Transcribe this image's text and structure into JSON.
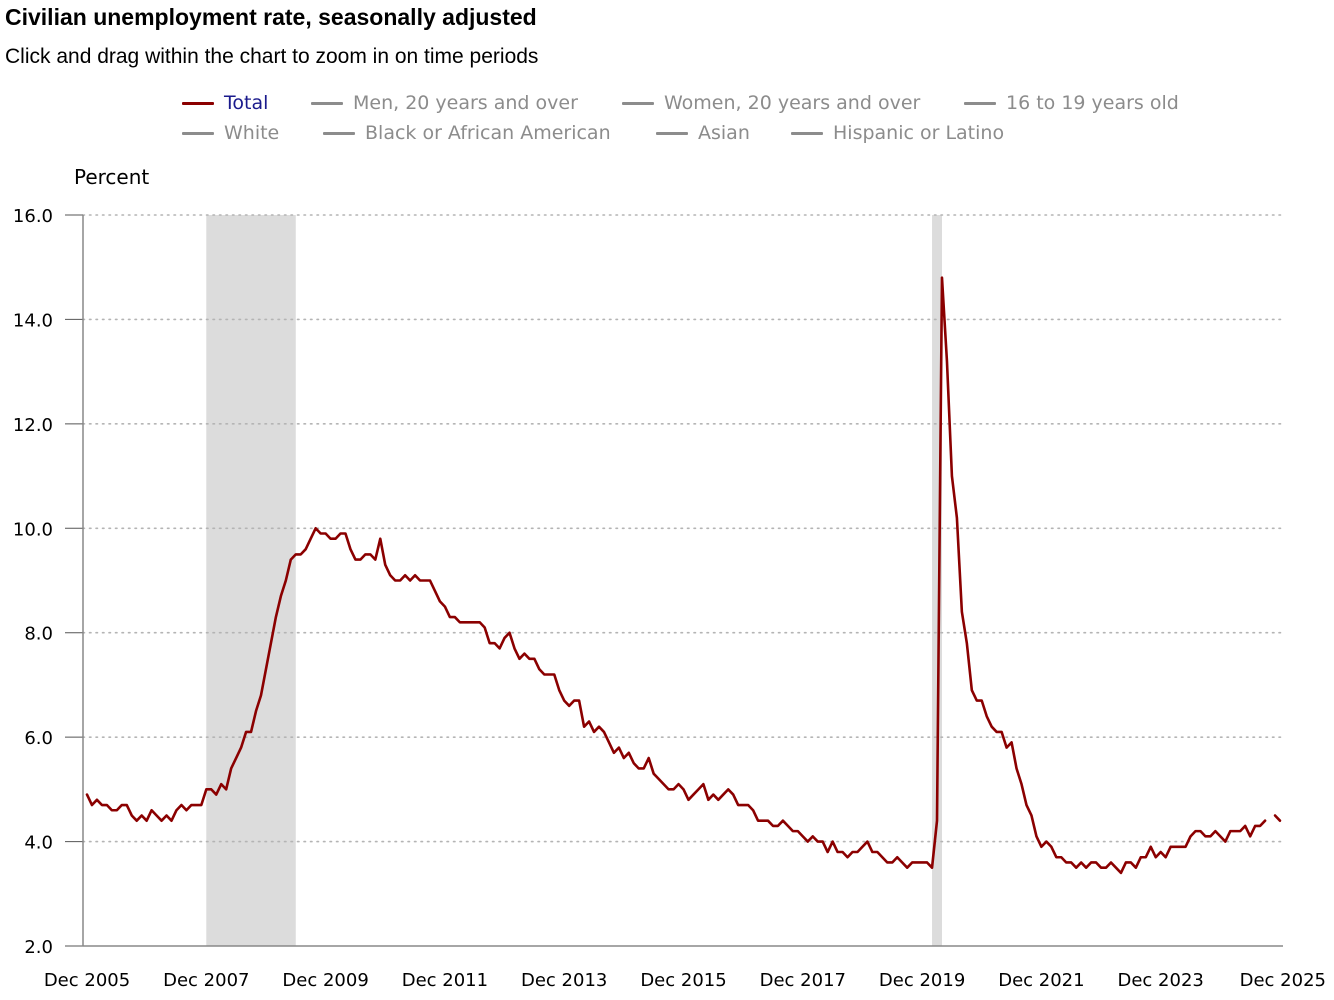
{
  "header": {
    "title": "Civilian unemployment rate, seasonally adjusted",
    "subtitle": "Click and drag within the chart to zoom in on time periods"
  },
  "legend": [
    {
      "label": "Total",
      "active": true
    },
    {
      "label": "Men, 20 years and over",
      "active": false
    },
    {
      "label": "Women, 20 years and over",
      "active": false
    },
    {
      "label": "16 to 19 years old",
      "active": false
    },
    {
      "label": "White",
      "active": false
    },
    {
      "label": "Black or African American",
      "active": false
    },
    {
      "label": "Asian",
      "active": false
    },
    {
      "label": "Hispanic or Latino",
      "active": false
    }
  ],
  "colors": {
    "total_line": "#8b0000",
    "recession_shade": "#dcdcdc",
    "grid": "#b4b4b4",
    "legend_inactive": "#8c8c8c",
    "legend_active_text": "#1a1a8c"
  },
  "chart_data": {
    "type": "line",
    "title": "Civilian unemployment rate, seasonally adjusted",
    "ylabel": "Percent",
    "xlabel": "",
    "ylim": [
      2.0,
      16.0
    ],
    "yticks": [
      "2.0",
      "4.0",
      "6.0",
      "8.0",
      "10.0",
      "12.0",
      "14.0",
      "16.0"
    ],
    "xticks": [
      "Dec 2005",
      "Dec 2007",
      "Dec 2009",
      "Dec 2011",
      "Dec 2013",
      "Dec 2015",
      "Dec 2017",
      "Dec 2019",
      "Dec 2021",
      "Dec 2023",
      "Dec 2025"
    ],
    "x_start": "Dec 2005",
    "x_end": "Dec 2025",
    "grid": true,
    "recessions": [
      {
        "start": "Dec 2007",
        "end": "Jun 2009"
      },
      {
        "start": "Feb 2020",
        "end": "Apr 2020"
      }
    ],
    "series": [
      {
        "name": "Total",
        "start": "Dec 2005",
        "values": [
          4.9,
          4.7,
          4.8,
          4.7,
          4.7,
          4.6,
          4.6,
          4.7,
          4.7,
          4.5,
          4.4,
          4.5,
          4.4,
          4.6,
          4.5,
          4.4,
          4.5,
          4.4,
          4.6,
          4.7,
          4.6,
          4.7,
          4.7,
          4.7,
          5.0,
          5.0,
          4.9,
          5.1,
          5.0,
          5.4,
          5.6,
          5.8,
          6.1,
          6.1,
          6.5,
          6.8,
          7.3,
          7.8,
          8.3,
          8.7,
          9.0,
          9.4,
          9.5,
          9.5,
          9.6,
          9.8,
          10.0,
          9.9,
          9.9,
          9.8,
          9.8,
          9.9,
          9.9,
          9.6,
          9.4,
          9.4,
          9.5,
          9.5,
          9.4,
          9.8,
          9.3,
          9.1,
          9.0,
          9.0,
          9.1,
          9.0,
          9.1,
          9.0,
          9.0,
          9.0,
          8.8,
          8.6,
          8.5,
          8.3,
          8.3,
          8.2,
          8.2,
          8.2,
          8.2,
          8.2,
          8.1,
          7.8,
          7.8,
          7.7,
          7.9,
          8.0,
          7.7,
          7.5,
          7.6,
          7.5,
          7.5,
          7.3,
          7.2,
          7.2,
          7.2,
          6.9,
          6.7,
          6.6,
          6.7,
          6.7,
          6.2,
          6.3,
          6.1,
          6.2,
          6.1,
          5.9,
          5.7,
          5.8,
          5.6,
          5.7,
          5.5,
          5.4,
          5.4,
          5.6,
          5.3,
          5.2,
          5.1,
          5.0,
          5.0,
          5.1,
          5.0,
          4.8,
          4.9,
          5.0,
          5.1,
          4.8,
          4.9,
          4.8,
          4.9,
          5.0,
          4.9,
          4.7,
          4.7,
          4.7,
          4.6,
          4.4,
          4.4,
          4.4,
          4.3,
          4.3,
          4.4,
          4.3,
          4.2,
          4.2,
          4.1,
          4.0,
          4.1,
          4.0,
          4.0,
          3.8,
          4.0,
          3.8,
          3.8,
          3.7,
          3.8,
          3.8,
          3.9,
          4.0,
          3.8,
          3.8,
          3.7,
          3.6,
          3.6,
          3.7,
          3.6,
          3.5,
          3.6,
          3.6,
          3.6,
          3.6,
          3.5,
          4.4,
          14.8,
          13.2,
          11.0,
          10.2,
          8.4,
          7.8,
          6.9,
          6.7,
          6.7,
          6.4,
          6.2,
          6.1,
          6.1,
          5.8,
          5.9,
          5.4,
          5.1,
          4.7,
          4.5,
          4.1,
          3.9,
          4.0,
          3.9,
          3.7,
          3.7,
          3.6,
          3.6,
          3.5,
          3.6,
          3.5,
          3.6,
          3.6,
          3.5,
          3.5,
          3.6,
          3.5,
          3.4,
          3.6,
          3.6,
          3.5,
          3.7,
          3.7,
          3.9,
          3.7,
          3.8,
          3.7,
          3.9,
          3.9,
          3.9,
          3.9,
          4.1,
          4.2,
          4.2,
          4.1,
          4.1,
          4.2,
          4.1,
          4.0,
          4.2,
          4.2,
          4.2,
          4.3,
          4.1,
          4.3,
          4.3,
          4.4,
          null,
          4.5,
          4.4
        ]
      }
    ]
  }
}
